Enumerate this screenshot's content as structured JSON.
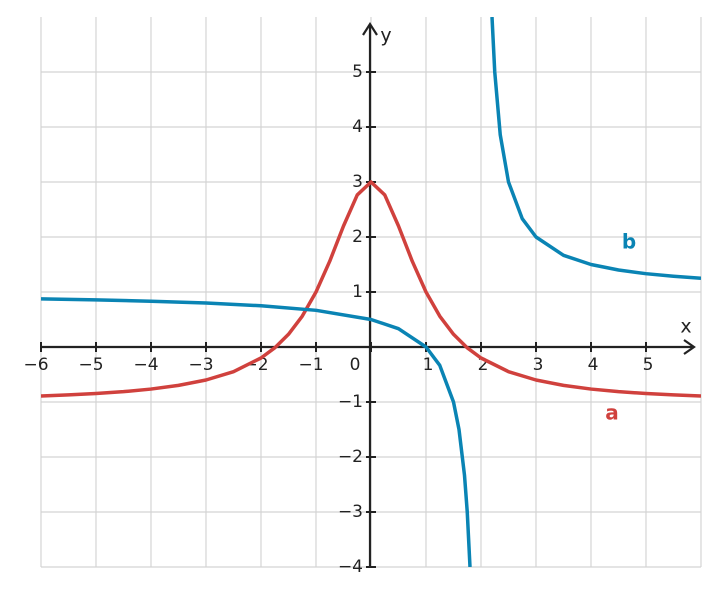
{
  "chart_data": {
    "type": "line",
    "x_label": "x",
    "y_label": "y",
    "xlim": [
      -6,
      6
    ],
    "ylim": [
      -4,
      6
    ],
    "xticks": [
      {
        "value": -6,
        "label": "−6"
      },
      {
        "value": -5,
        "label": "−5"
      },
      {
        "value": -4,
        "label": "−4"
      },
      {
        "value": -3,
        "label": "−3"
      },
      {
        "value": -2,
        "label": "−2"
      },
      {
        "value": -1,
        "label": "−1"
      },
      0,
      1,
      2,
      3,
      4,
      5
    ],
    "yticks": [
      {
        "value": -4,
        "label": "−4"
      },
      {
        "value": -3,
        "label": "−3"
      },
      {
        "value": -2,
        "label": "−2"
      },
      {
        "value": -1,
        "label": "−1"
      },
      1,
      2,
      3,
      4,
      5
    ],
    "grid": true,
    "series": [
      {
        "name": "a",
        "color": "#d0413d",
        "x": [
          -6,
          -5.5,
          -5,
          -4.5,
          -4,
          -3.5,
          -3,
          -2.5,
          -2,
          -1.75,
          -1.5,
          -1.25,
          -1,
          -0.75,
          -0.5,
          -0.25,
          0,
          0.25,
          0.5,
          0.75,
          1,
          1.25,
          1.5,
          1.75,
          2,
          2.5,
          3,
          3.5,
          4,
          4.5,
          5,
          5.5,
          6
        ],
        "values": [
          -0.892,
          -0.871,
          -0.846,
          -0.812,
          -0.765,
          -0.698,
          -0.6,
          -0.448,
          -0.2,
          -0.015,
          0.231,
          0.561,
          1,
          1.56,
          2.2,
          2.765,
          3,
          2.765,
          2.2,
          1.56,
          1,
          0.561,
          0.231,
          -0.015,
          -0.2,
          -0.448,
          -0.6,
          -0.698,
          -0.765,
          -0.812,
          -0.846,
          -0.871,
          -0.892
        ]
      },
      {
        "name": "b",
        "color": "#0a84b4",
        "x": [
          -6,
          -5,
          -4,
          -3,
          -2,
          -1,
          0,
          0.5,
          1,
          1.25,
          1.5,
          1.6,
          1.7,
          1.75,
          1.8,
          2,
          2.2,
          2.25,
          2.35,
          2.5,
          2.75,
          3,
          3.5,
          4,
          4.5,
          5,
          5.5,
          6
        ],
        "values": [
          0.875,
          0.857,
          0.833,
          0.8,
          0.75,
          0.667,
          0.5,
          0.333,
          0,
          -0.333,
          -1,
          -1.5,
          -2.333,
          -3,
          -4,
          null,
          6,
          5,
          3.857,
          3,
          2.333,
          2,
          1.667,
          1.5,
          1.4,
          1.333,
          1.286,
          1.25
        ]
      }
    ]
  }
}
